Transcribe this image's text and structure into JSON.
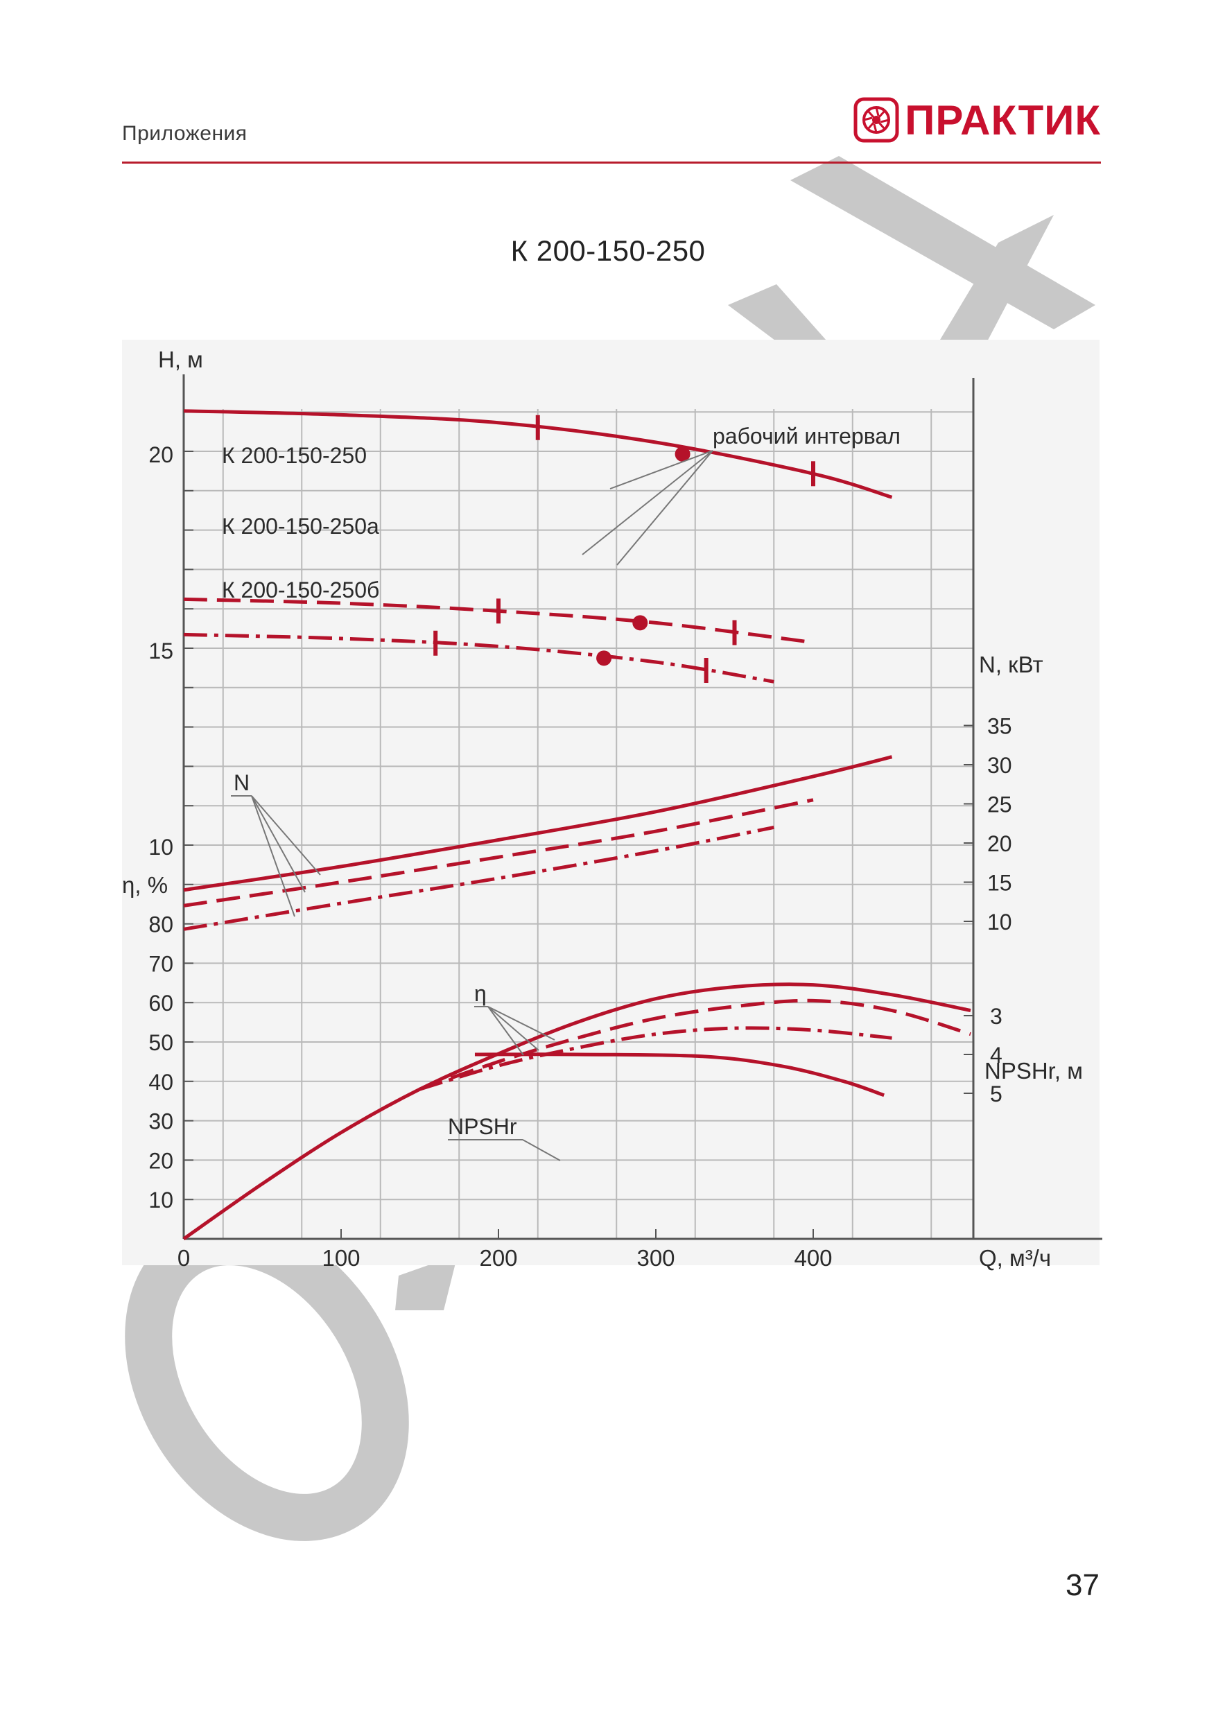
{
  "header": {
    "section_label": "Приложения",
    "brand_name": "ПРАКТИК"
  },
  "page_number": "37",
  "colors": {
    "accent": "#c8102e",
    "curve": "#b5122a",
    "grid": "#b9b9b9",
    "chart_bg": "#f4f4f4",
    "watermark": "#c8c8c8"
  },
  "icons": {
    "brand": "pump-logo-icon"
  },
  "chart_data": {
    "type": "line",
    "title": "К 200-150-250",
    "xlabel": "Q, м³/ч",
    "xlim": [
      0,
      500
    ],
    "x_ticks": [
      0,
      100,
      200,
      300,
      400
    ],
    "grid": true,
    "axes": {
      "head": {
        "label": "Н, м",
        "ylim": [
          0,
          25
        ],
        "ticks": [
          10,
          15,
          20
        ]
      },
      "power": {
        "label": "N, кВт",
        "ticks": [
          10,
          15,
          20,
          25,
          30,
          35
        ]
      },
      "efficiency": {
        "label": "η, %",
        "ticks": [
          10,
          20,
          30,
          40,
          50,
          60,
          70,
          80
        ]
      },
      "npshr": {
        "label": "NPSHr, м",
        "ticks": [
          3,
          4,
          5
        ]
      }
    },
    "head_curves": [
      {
        "name": "К 200-150-250",
        "style": "solid",
        "points": [
          [
            0,
            21.1
          ],
          [
            100,
            21.0
          ],
          [
            200,
            20.8
          ],
          [
            300,
            20.3
          ],
          [
            400,
            19.5
          ],
          [
            450,
            18.9
          ]
        ],
        "range_marks": [
          225,
          400
        ],
        "bep": [
          317,
          20.0
        ]
      },
      {
        "name": "К 200-150-250а",
        "style": "dash",
        "points": [
          [
            0,
            16.3
          ],
          [
            100,
            16.2
          ],
          [
            200,
            16.0
          ],
          [
            300,
            15.7
          ],
          [
            400,
            15.2
          ]
        ],
        "range_marks": [
          200,
          350
        ],
        "bep": [
          290,
          15.7
        ]
      },
      {
        "name": "К 200-150-250б",
        "style": "dashdot",
        "points": [
          [
            0,
            15.4
          ],
          [
            100,
            15.3
          ],
          [
            200,
            15.1
          ],
          [
            300,
            14.7
          ],
          [
            375,
            14.2
          ]
        ],
        "range_marks": [
          160,
          332
        ],
        "bep": [
          267,
          14.8
        ]
      }
    ],
    "power_curves": [
      {
        "name": "N",
        "style": "solid",
        "points": [
          [
            0,
            14.0
          ],
          [
            100,
            17.0
          ],
          [
            200,
            20.4
          ],
          [
            300,
            24.0
          ],
          [
            400,
            28.5
          ],
          [
            450,
            31.0
          ]
        ]
      },
      {
        "name": "N",
        "style": "dash",
        "points": [
          [
            0,
            12.0
          ],
          [
            100,
            15.0
          ],
          [
            200,
            18.2
          ],
          [
            300,
            21.5
          ],
          [
            400,
            25.5
          ]
        ]
      },
      {
        "name": "N",
        "style": "dashdot",
        "points": [
          [
            0,
            9.0
          ],
          [
            100,
            12.3
          ],
          [
            200,
            15.5
          ],
          [
            300,
            19.0
          ],
          [
            375,
            22.0
          ]
        ]
      }
    ],
    "efficiency_curves": [
      {
        "name": "η",
        "style": "solid",
        "points": [
          [
            0,
            0
          ],
          [
            50,
            14
          ],
          [
            100,
            27
          ],
          [
            150,
            38
          ],
          [
            200,
            47
          ],
          [
            250,
            55
          ],
          [
            300,
            61
          ],
          [
            350,
            64
          ],
          [
            400,
            64.5
          ],
          [
            450,
            62
          ],
          [
            500,
            58
          ]
        ]
      },
      {
        "name": "η",
        "style": "dash",
        "points": [
          [
            150,
            38
          ],
          [
            200,
            45
          ],
          [
            250,
            51
          ],
          [
            300,
            56
          ],
          [
            350,
            59
          ],
          [
            400,
            60.5
          ],
          [
            450,
            58
          ],
          [
            500,
            52
          ]
        ]
      },
      {
        "name": "η",
        "style": "dashdot",
        "points": [
          [
            150,
            38
          ],
          [
            200,
            44
          ],
          [
            250,
            48.5
          ],
          [
            300,
            52
          ],
          [
            350,
            53.5
          ],
          [
            400,
            53
          ],
          [
            450,
            51
          ]
        ]
      }
    ],
    "npshr_curve": {
      "name": "NPSHr",
      "style": "solid",
      "points": [
        [
          185,
          4.0
        ],
        [
          250,
          4.0
        ],
        [
          330,
          4.05
        ],
        [
          380,
          4.3
        ],
        [
          420,
          4.7
        ],
        [
          445,
          5.05
        ]
      ]
    },
    "annotations": [
      {
        "id": "operating-range",
        "text": "рабочий интервал"
      },
      {
        "id": "label-a",
        "text": "К 200-150-250"
      },
      {
        "id": "label-b",
        "text": "К 200-150-250а"
      },
      {
        "id": "label-c",
        "text": "К 200-150-250б"
      },
      {
        "id": "label-N",
        "text": "N"
      },
      {
        "id": "label-eta",
        "text": "η"
      },
      {
        "id": "label-npshr",
        "text": "NPSHr"
      }
    ]
  }
}
